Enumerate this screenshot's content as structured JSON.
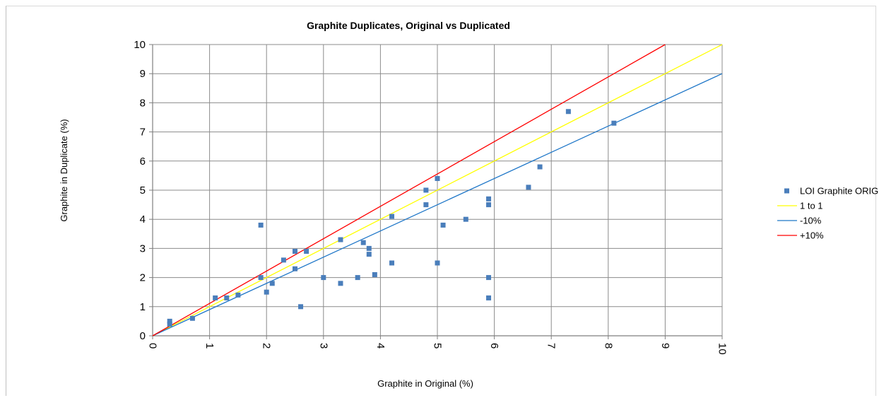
{
  "chart_data": {
    "type": "scatter",
    "title": "Graphite Duplicates, Original vs Duplicated",
    "xlabel": "Graphite in Original (%)",
    "ylabel": "Graphite in Duplicate (%)",
    "xlim": [
      0,
      10
    ],
    "ylim": [
      0,
      10
    ],
    "xticks": [
      0,
      1,
      2,
      3,
      4,
      5,
      6,
      7,
      8,
      9,
      10
    ],
    "yticks": [
      0,
      1,
      2,
      3,
      4,
      5,
      6,
      7,
      8,
      9,
      10
    ],
    "grid": true,
    "legend_position": "right",
    "series": [
      {
        "name": "LOI Graphite ORIG",
        "kind": "scatter",
        "color": "#4a7ebb",
        "points": [
          [
            0.3,
            0.5
          ],
          [
            0.3,
            0.4
          ],
          [
            0.7,
            0.6
          ],
          [
            1.1,
            1.3
          ],
          [
            1.3,
            1.3
          ],
          [
            1.5,
            1.4
          ],
          [
            1.9,
            3.8
          ],
          [
            1.9,
            2.0
          ],
          [
            2.0,
            1.5
          ],
          [
            2.1,
            1.8
          ],
          [
            2.3,
            2.6
          ],
          [
            2.5,
            2.9
          ],
          [
            2.5,
            2.3
          ],
          [
            2.6,
            1.0
          ],
          [
            2.7,
            2.9
          ],
          [
            3.0,
            2.0
          ],
          [
            3.3,
            3.3
          ],
          [
            3.3,
            1.8
          ],
          [
            3.6,
            2.0
          ],
          [
            3.7,
            3.2
          ],
          [
            3.8,
            3.0
          ],
          [
            3.8,
            2.8
          ],
          [
            3.9,
            2.1
          ],
          [
            4.2,
            4.1
          ],
          [
            4.2,
            2.5
          ],
          [
            4.8,
            5.0
          ],
          [
            4.8,
            4.5
          ],
          [
            5.0,
            5.4
          ],
          [
            5.0,
            2.5
          ],
          [
            5.1,
            3.8
          ],
          [
            5.5,
            4.0
          ],
          [
            5.9,
            4.7
          ],
          [
            5.9,
            4.5
          ],
          [
            5.9,
            2.0
          ],
          [
            5.9,
            1.3
          ],
          [
            6.6,
            5.1
          ],
          [
            6.8,
            5.8
          ],
          [
            7.3,
            7.7
          ],
          [
            8.1,
            7.3
          ]
        ]
      },
      {
        "name": "1 to 1",
        "kind": "line",
        "color": "#ffff00",
        "points": [
          [
            0,
            0
          ],
          [
            10,
            10
          ]
        ]
      },
      {
        "name": "-10%",
        "kind": "line",
        "color": "#1f77c8",
        "points": [
          [
            0,
            0
          ],
          [
            10,
            9
          ]
        ]
      },
      {
        "name": "+10%",
        "kind": "line",
        "color": "#ff0000",
        "points": [
          [
            0,
            0
          ],
          [
            9,
            10
          ]
        ]
      }
    ]
  }
}
